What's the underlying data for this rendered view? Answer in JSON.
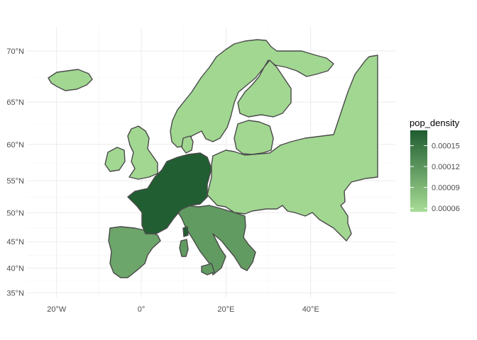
{
  "chart_data": {
    "type": "choropleth-map",
    "x_ticks": [
      "20°W",
      "0°",
      "20°E",
      "40°E"
    ],
    "y_ticks": [
      "35°N",
      "40°N",
      "45°N",
      "50°N",
      "55°N",
      "60°N",
      "65°N",
      "70°N"
    ],
    "x_tick_values": [
      -20,
      0,
      20,
      40
    ],
    "y_tick_values": [
      35,
      40,
      45,
      50,
      55,
      60,
      65,
      70
    ],
    "xlim": [
      -27,
      60
    ],
    "ylim": [
      34,
      72
    ],
    "grid": true,
    "legend": {
      "title": "pop_density",
      "position": "right",
      "ticks": [
        "0.00015",
        "0.00012",
        "0.00009",
        "0.00006"
      ],
      "tick_values": [
        0.00015,
        0.00012,
        9e-05,
        6e-05
      ],
      "range": [
        5.5e-05,
        0.000172
      ],
      "color_low": "#a8dd96",
      "color_high": "#1f5c30"
    },
    "regions": [
      {
        "name": "Central (France/Germany/Benelux)",
        "value": 0.00017
      },
      {
        "name": "Italy/Balkans",
        "value": 0.000115
      },
      {
        "name": "Iberia",
        "value": 0.000105
      },
      {
        "name": "British Isles",
        "value": 6e-05
      },
      {
        "name": "Iceland",
        "value": 6e-05
      },
      {
        "name": "Scandinavia",
        "value": 6e-05
      },
      {
        "name": "Finland",
        "value": 6e-05
      },
      {
        "name": "Eastern Europe",
        "value": 6e-05
      },
      {
        "name": "Denmark",
        "value": 6e-05
      }
    ]
  }
}
